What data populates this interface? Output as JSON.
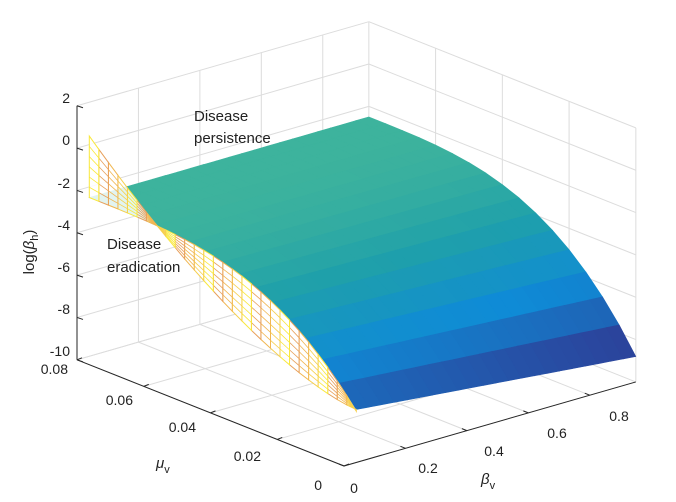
{
  "chart_data": {
    "type": "surface3d",
    "title": "",
    "x_axis": {
      "label_main": "β",
      "label_sub": "v",
      "ticks": [
        "0",
        "0.2",
        "0.4",
        "0.6",
        "0.8"
      ],
      "range": [
        0,
        0.95
      ]
    },
    "y_axis": {
      "label_main": "μ",
      "label_sub": "v",
      "ticks": [
        "0",
        "0.02",
        "0.04",
        "0.06",
        "0.08"
      ],
      "range": [
        0,
        0.08
      ]
    },
    "z_axis": {
      "label_prefix": "log(",
      "label_main": "β",
      "label_sub": "h",
      "label_suffix": ")",
      "ticks": [
        "-10",
        "-8",
        "-6",
        "-4",
        "-2",
        "0",
        "2"
      ],
      "range": [
        -10,
        2
      ]
    },
    "grid": true,
    "box": true,
    "colormap": "parula",
    "wireframe_edge": {
      "description": "yellow mesh where beta_v is near 0",
      "beta_v": 0.04,
      "mu_v_range": [
        0,
        0.08
      ],
      "log_beta_h_range": [
        -7.5,
        0.4
      ]
    },
    "surface_corners": {
      "beta_v": [
        0.04,
        0.95
      ],
      "mu_v": [
        0,
        0.08
      ],
      "log_beta_h_at_mu_max": [
        -2.5,
        -2.5
      ],
      "log_beta_h_at_mu_min": [
        -7.5,
        -8.8
      ]
    },
    "annotations": [
      {
        "id": "persistence",
        "lines": [
          "Disease",
          "persistence"
        ]
      },
      {
        "id": "eradication",
        "lines": [
          "Disease",
          "eradication"
        ]
      }
    ],
    "colors": {
      "parula_low": "#352a87",
      "parula_mid": "#0f8bd6",
      "parula_teal": "#1fa0aa",
      "parula_high": "#f9fb0e",
      "grid": "#dcdcdc",
      "axis": "#262626"
    }
  }
}
